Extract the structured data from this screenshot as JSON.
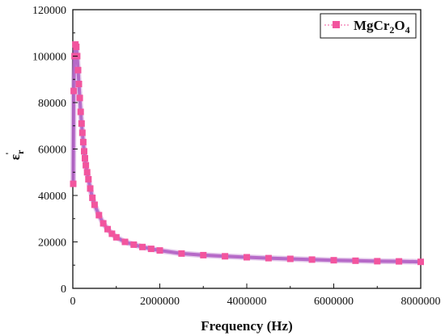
{
  "chart_data": {
    "type": "scatter",
    "title": "",
    "xlabel": "Frequency (Hz)",
    "ylabel_symbol": "ε",
    "ylabel_subscript": "r",
    "ylabel_prime": "'",
    "xlim": [
      0,
      8000000
    ],
    "ylim": [
      0,
      120000
    ],
    "x_ticks": [
      0,
      2000000,
      4000000,
      6000000,
      8000000
    ],
    "x_tick_labels": [
      "0",
      "2000000",
      "4000000",
      "6000000",
      "8000000"
    ],
    "y_ticks": [
      0,
      20000,
      40000,
      60000,
      80000,
      100000,
      120000
    ],
    "y_tick_labels": [
      "0",
      "20000",
      "40000",
      "60000",
      "80000",
      "100000",
      "120000"
    ],
    "grid": false,
    "legend_position": "top-right",
    "series": [
      {
        "name_main": "MgCr",
        "name_sub1": "2",
        "name_mid": "O",
        "name_sub2": "4",
        "color": "#f2559e",
        "curve_color": "#b05fc4",
        "x": [
          10000,
          20000,
          40000,
          60000,
          80000,
          100000,
          120000,
          140000,
          160000,
          180000,
          200000,
          220000,
          240000,
          260000,
          280000,
          300000,
          330000,
          360000,
          400000,
          450000,
          500000,
          600000,
          700000,
          800000,
          900000,
          1000000,
          1200000,
          1400000,
          1600000,
          1800000,
          2000000,
          2500000,
          3000000,
          3500000,
          4000000,
          4500000,
          5000000,
          5500000,
          6000000,
          6500000,
          7000000,
          7500000,
          8000000
        ],
        "y": [
          45000,
          85000,
          100000,
          105000,
          104000,
          100000,
          94000,
          88000,
          82000,
          76000,
          71000,
          67000,
          63000,
          59000,
          56000,
          53000,
          50000,
          47000,
          43000,
          39000,
          36000,
          31500,
          28000,
          25500,
          23500,
          22000,
          20000,
          18800,
          17800,
          17000,
          16300,
          15000,
          14300,
          13800,
          13400,
          13000,
          12700,
          12400,
          12100,
          11900,
          11700,
          11600,
          11400
        ]
      }
    ]
  }
}
